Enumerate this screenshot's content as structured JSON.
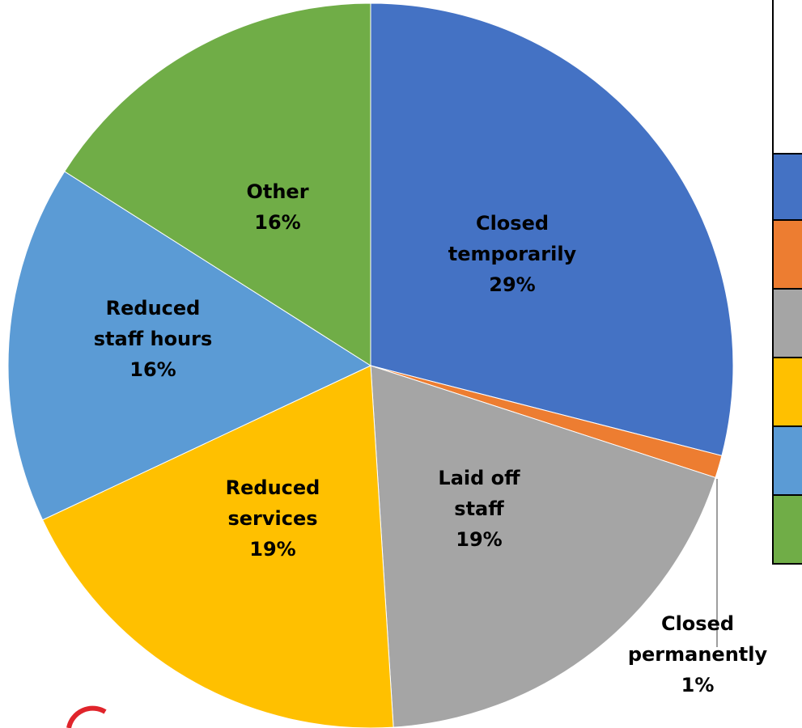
{
  "chart_data": {
    "type": "pie",
    "categories": [
      "Closed temporarily",
      "Closed permanently",
      "Laid off staff",
      "Reduced services",
      "Reduced staff hours",
      "Other"
    ],
    "values": [
      29,
      1,
      19,
      19,
      16,
      16
    ],
    "value_labels": [
      "29%",
      "1%",
      "19%",
      "19%",
      "16%",
      "16%"
    ],
    "colors": [
      "#4472c4",
      "#ed7d31",
      "#a5a5a5",
      "#ffc000",
      "#5b9bd5",
      "#70ad47"
    ]
  }
}
